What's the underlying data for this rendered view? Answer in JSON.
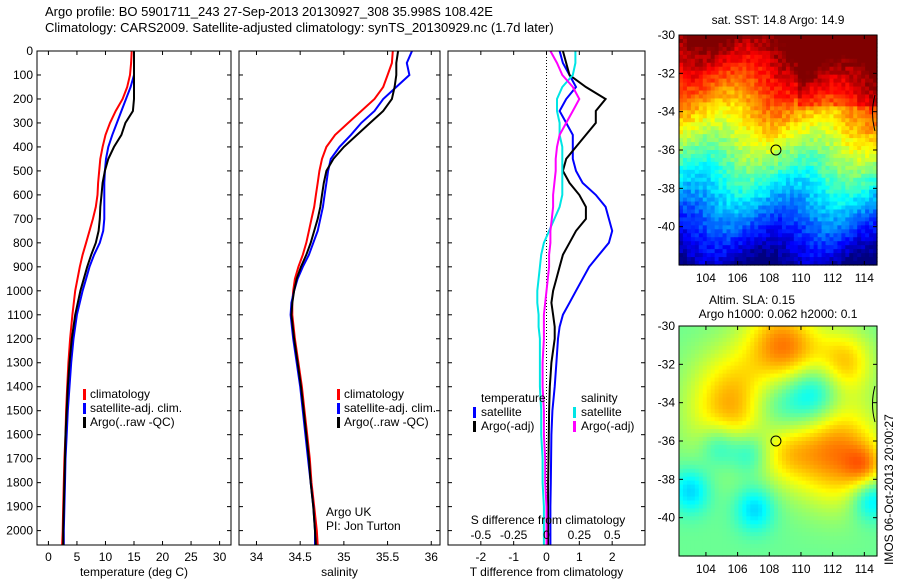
{
  "header": {
    "line1": "Argo profile: BO 5901711_243 27-Sep-2013 20130927_308 35.998S 108.42E",
    "line2": "Climatology: CARS2009. Satellite-adjusted climatology: synTS_20130929.nc (1.7d later)"
  },
  "colors": {
    "climatology": "#ff0000",
    "satellite": "#0000ff",
    "argo": "#000000",
    "sal_satellite": "#00e5e5",
    "sal_argo": "#ff00ff"
  },
  "chart_data": [
    {
      "type": "line",
      "id": "temperature",
      "xlabel": "temperature (deg C)",
      "ylabel": "",
      "xlim": [
        -2,
        32
      ],
      "ylim": [
        2060,
        0
      ],
      "xticks": [
        0,
        5,
        10,
        15,
        20,
        25,
        30
      ],
      "yticks": [
        0,
        100,
        200,
        300,
        400,
        500,
        600,
        700,
        800,
        900,
        1000,
        1100,
        1200,
        1300,
        1400,
        1500,
        1600,
        1700,
        1800,
        1900,
        2000
      ],
      "legend": [
        "climatology",
        "satellite-adj. clim.",
        "Argo(..raw -QC)"
      ],
      "depth": [
        0,
        50,
        100,
        150,
        200,
        250,
        300,
        350,
        400,
        450,
        500,
        550,
        600,
        650,
        700,
        750,
        800,
        850,
        900,
        950,
        1000,
        1100,
        1200,
        1300,
        1400,
        1500,
        1600,
        1700,
        1800,
        1900,
        2000,
        2060
      ],
      "series": [
        {
          "name": "climatology",
          "values": [
            14.6,
            14.5,
            14.3,
            13.8,
            13.0,
            11.8,
            10.8,
            10.0,
            9.5,
            9.1,
            8.9,
            8.7,
            8.6,
            8.3,
            7.8,
            7.2,
            6.6,
            6.0,
            5.5,
            5.1,
            4.7,
            4.2,
            3.8,
            3.5,
            3.3,
            3.1,
            3.0,
            2.8,
            2.7,
            2.6,
            2.5,
            2.4
          ]
        },
        {
          "name": "satellite-adj. clim.",
          "values": [
            15.0,
            15.0,
            15.0,
            14.4,
            13.6,
            12.8,
            12.0,
            11.2,
            10.5,
            10.1,
            9.9,
            9.8,
            9.8,
            9.8,
            9.8,
            9.6,
            9.0,
            8.0,
            7.2,
            6.6,
            6.0,
            5.0,
            4.4,
            4.0,
            3.7,
            3.4,
            3.2,
            3.0,
            2.9,
            2.8,
            2.7,
            2.7
          ]
        },
        {
          "name": "Argo(..raw -QC)",
          "values": [
            15.0,
            15.0,
            15.0,
            15.0,
            15.0,
            14.8,
            13.5,
            12.8,
            11.5,
            10.5,
            9.9,
            9.5,
            9.3,
            9.1,
            9.0,
            8.8,
            8.3,
            7.5,
            6.8,
            6.2,
            5.6,
            4.7,
            4.1,
            3.7,
            3.4,
            3.2,
            3.0,
            2.9,
            2.8,
            2.7,
            2.6,
            2.6
          ]
        }
      ]
    },
    {
      "type": "line",
      "id": "salinity",
      "xlabel": "salinity",
      "xlim": [
        33.8,
        36.1
      ],
      "ylim": [
        2060,
        0
      ],
      "xticks": [
        34,
        34.5,
        35,
        35.5,
        36
      ],
      "legend": [
        "climatology",
        "satellite-adj. clim.",
        "Argo(..raw -QC)"
      ],
      "annotation": [
        "Argo UK",
        "PI: Jon Turton"
      ],
      "depth": [
        0,
        50,
        100,
        150,
        200,
        250,
        300,
        350,
        400,
        450,
        500,
        550,
        600,
        650,
        700,
        750,
        800,
        850,
        900,
        950,
        1000,
        1050,
        1100,
        1200,
        1300,
        1400,
        1500,
        1600,
        1700,
        1800,
        1900,
        2000,
        2060
      ],
      "series": [
        {
          "name": "climatology",
          "values": [
            35.56,
            35.55,
            35.5,
            35.45,
            35.35,
            35.2,
            35.05,
            34.9,
            34.8,
            34.75,
            34.72,
            34.7,
            34.68,
            34.66,
            34.63,
            34.6,
            34.57,
            34.53,
            34.48,
            34.44,
            34.42,
            34.41,
            34.41,
            34.44,
            34.48,
            34.52,
            34.55,
            34.58,
            34.61,
            34.63,
            34.66,
            34.69,
            34.7
          ]
        },
        {
          "name": "satellite-adj. clim.",
          "values": [
            35.78,
            35.72,
            35.75,
            35.6,
            35.45,
            35.35,
            35.2,
            35.08,
            34.95,
            34.85,
            34.82,
            34.8,
            34.78,
            34.76,
            34.73,
            34.7,
            34.65,
            34.6,
            34.53,
            34.47,
            34.43,
            34.4,
            34.39,
            34.42,
            34.46,
            34.5,
            34.53,
            34.56,
            34.59,
            34.62,
            34.65,
            34.67,
            34.67
          ]
        },
        {
          "name": "Argo(..raw -QC)",
          "values": [
            35.62,
            35.6,
            35.6,
            35.58,
            35.55,
            35.45,
            35.3,
            35.15,
            35.0,
            34.88,
            34.8,
            34.77,
            34.75,
            34.73,
            34.7,
            34.66,
            34.62,
            34.57,
            34.51,
            34.46,
            34.43,
            34.41,
            34.4,
            34.43,
            34.47,
            34.51,
            34.54,
            34.57,
            34.6,
            34.62,
            34.65,
            34.67,
            34.68
          ]
        }
      ]
    },
    {
      "type": "line",
      "id": "difference",
      "xlabel": "T difference from climatology",
      "x2label": "S difference from climatology",
      "xlim": [
        -3,
        3
      ],
      "x2lim": [
        -0.75,
        0.75
      ],
      "ylim": [
        2060,
        0
      ],
      "xticks": [
        -2,
        -1,
        0,
        1,
        2
      ],
      "x2ticks": [
        -0.5,
        -0.25,
        0,
        0.25,
        0.5
      ],
      "x2ticklabels": [
        "-0.5",
        "-0.25",
        "0",
        "0.25",
        "0.5"
      ],
      "legend": {
        "temperature_title": "temperature",
        "salinity_title": "salinity",
        "items": [
          "satellite",
          "Argo(-adj)",
          "satellite",
          "Argo(-adj)"
        ]
      },
      "depth": [
        0,
        50,
        100,
        150,
        200,
        250,
        300,
        350,
        400,
        450,
        500,
        550,
        600,
        650,
        700,
        750,
        800,
        850,
        900,
        950,
        1000,
        1050,
        1100,
        1150,
        1200,
        1300,
        1400,
        1500,
        1600,
        1700,
        1800,
        1900,
        2000,
        2060
      ],
      "series": [
        {
          "name": "T satellite",
          "axis": "T",
          "values": [
            0.4,
            0.5,
            0.7,
            0.9,
            0.6,
            0.4,
            0.6,
            0.8,
            0.8,
            0.8,
            0.9,
            1.1,
            1.5,
            1.8,
            1.9,
            2.0,
            1.9,
            1.6,
            1.3,
            1.1,
            0.9,
            0.7,
            0.5,
            0.4,
            0.35,
            0.3,
            0.25,
            0.18,
            0.15,
            0.14,
            0.13,
            0.12,
            0.12,
            0.12
          ]
        },
        {
          "name": "T Argo(-adj)",
          "axis": "T",
          "values": [
            0.5,
            0.6,
            0.7,
            1.2,
            1.8,
            1.5,
            1.5,
            1.2,
            0.9,
            0.6,
            0.5,
            0.7,
            1.0,
            1.2,
            1.2,
            0.9,
            0.7,
            0.5,
            0.4,
            0.3,
            0.2,
            0.15,
            0.2,
            0.25,
            0.25,
            0.15,
            0.1,
            0.08,
            0.07,
            0.06,
            0.05,
            0.05,
            0.05,
            0.05
          ]
        },
        {
          "name": "S satellite",
          "axis": "S",
          "values": [
            0.22,
            0.22,
            0.2,
            0.12,
            0.08,
            0.08,
            0.1,
            0.1,
            0.12,
            0.12,
            0.12,
            0.12,
            0.12,
            0.1,
            0.06,
            0.02,
            -0.02,
            -0.04,
            -0.05,
            -0.06,
            -0.07,
            -0.07,
            -0.06,
            -0.06,
            -0.05,
            -0.05,
            -0.05,
            -0.04,
            -0.04,
            -0.03,
            -0.03,
            -0.02,
            -0.02,
            -0.02
          ]
        },
        {
          "name": "S Argo(-adj)",
          "axis": "S",
          "values": [
            0.03,
            0.08,
            0.12,
            0.2,
            0.25,
            0.2,
            0.15,
            0.1,
            0.08,
            0.07,
            0.07,
            0.06,
            0.05,
            0.05,
            0.04,
            0.03,
            0.03,
            0.02,
            0.02,
            0.01,
            0.0,
            -0.01,
            -0.02,
            -0.02,
            -0.02,
            -0.03,
            -0.03,
            -0.02,
            -0.02,
            -0.01,
            -0.01,
            0.0,
            0.0,
            0.0
          ]
        }
      ]
    },
    {
      "type": "heatmap",
      "id": "sst-map",
      "title": "sat. SST: 14.8 Argo: 14.9",
      "xlim": [
        102.3,
        114.8
      ],
      "ylim": [
        -42,
        -30
      ],
      "xticks": [
        104,
        106,
        108,
        110,
        112,
        114
      ],
      "yticks": [
        -30,
        -32,
        -34,
        -36,
        -38,
        -40
      ],
      "marker": {
        "lon": 108.42,
        "lat": -35.998
      },
      "colorscale": "jet"
    },
    {
      "type": "heatmap",
      "id": "sla-map",
      "title": "Altim. SLA: 0.15",
      "subtitle": "Argo h1000: 0.062 h2000: 0.1",
      "xlim": [
        102.3,
        114.8
      ],
      "ylim": [
        -42,
        -30
      ],
      "xticks": [
        104,
        106,
        108,
        110,
        112,
        114
      ],
      "yticks": [
        -30,
        -32,
        -34,
        -36,
        -38,
        -40
      ],
      "marker": {
        "lon": 108.42,
        "lat": -35.998
      },
      "colorscale": "jet",
      "side_label": "IMOS 06-Oct-2013 20:00:27"
    }
  ]
}
